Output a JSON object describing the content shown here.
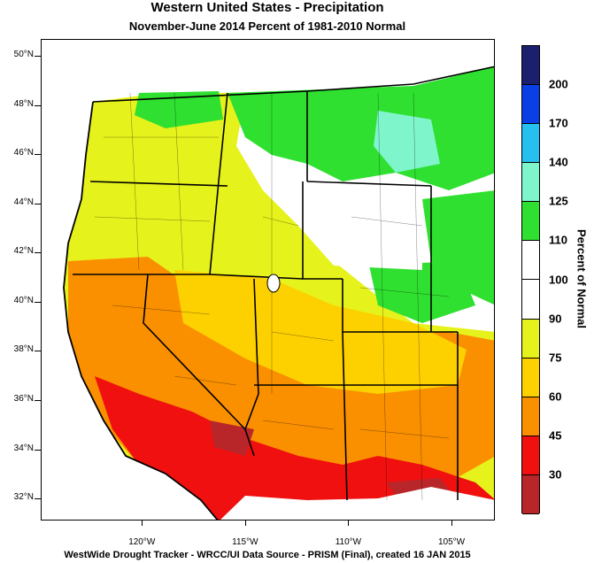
{
  "header": {
    "title": "Western United States - Precipitation",
    "subtitle": "November-June 2014  Percent of 1981-2010 Normal"
  },
  "axes": {
    "lat_labels": [
      "50°N",
      "48°N",
      "46°N",
      "44°N",
      "42°N",
      "40°N",
      "38°N",
      "36°N",
      "34°N",
      "32°N"
    ],
    "lat_values": [
      50,
      48,
      46,
      44,
      42,
      40,
      38,
      36,
      34,
      32
    ],
    "lon_labels": [
      "120°W",
      "115°W",
      "110°W",
      "105°W"
    ],
    "lon_values": [
      -120,
      -115,
      -110,
      -105
    ],
    "lat_range": [
      31.1,
      50.7
    ],
    "lon_range": [
      -124.9,
      -102.9
    ]
  },
  "legend": {
    "title": "Percent of Normal",
    "labels": [
      "200",
      "170",
      "140",
      "125",
      "110",
      "100",
      "90",
      "75",
      "60",
      "45",
      "30"
    ],
    "colors": [
      "#1a1f6e",
      "#0a3fe6",
      "#26c0f0",
      "#7ff5cc",
      "#2fe030",
      "#ffffff",
      "#ffffff",
      "#e6f21c",
      "#fdd000",
      "#fa8f00",
      "#f01010",
      "#b8262a"
    ]
  },
  "footer": "WestWide Drought Tracker - WRCC/UI  Data Source - PRISM (Final), created 16 JAN 2015"
}
